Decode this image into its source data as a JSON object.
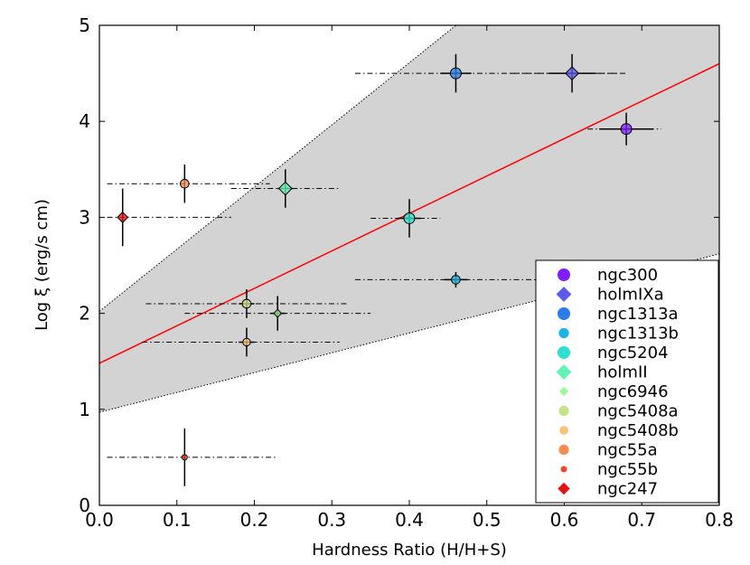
{
  "chart_data": {
    "type": "scatter",
    "title": "",
    "xlabel": "Hardness Ratio (H/H+S)",
    "ylabel": "Log ξ (erg/s cm)",
    "xlim": [
      0.0,
      0.8
    ],
    "ylim": [
      0,
      5
    ],
    "xticks": [
      "0.0",
      "0.1",
      "0.2",
      "0.3",
      "0.4",
      "0.5",
      "0.6",
      "0.7",
      "0.8"
    ],
    "yticks": [
      "0",
      "1",
      "2",
      "3",
      "4",
      "5"
    ],
    "grid": false,
    "legend_position": "lower-right",
    "fit_line": {
      "color": "#ff0000",
      "x": [
        0.0,
        0.8
      ],
      "y": [
        1.48,
        4.6
      ]
    },
    "shaded_band": {
      "color": "#d3d3d3",
      "upper": {
        "x": [
          0.0,
          0.8
        ],
        "y": [
          2.02,
          7.2
        ]
      },
      "lower": {
        "x": [
          0.0,
          0.8
        ],
        "y": [
          0.97,
          2.62
        ]
      }
    },
    "series": [
      {
        "name": "ngc300",
        "marker": "circle",
        "size": 1.0,
        "color": "#7f1fff",
        "points": [
          {
            "x": 0.68,
            "y": 3.92,
            "xerr": 0.035,
            "yerr": 0.17,
            "xerr_dash": [
              0.63,
              0.725
            ]
          }
        ]
      },
      {
        "name": "holmIXa",
        "marker": "diamond",
        "size": 1.0,
        "color": "#5a5af0",
        "points": [
          {
            "x": 0.61,
            "y": 4.5,
            "xerr": 0.03,
            "yerr": 0.2,
            "xerr_dash": [
              0.53,
              0.68
            ]
          }
        ]
      },
      {
        "name": "ngc1313a",
        "marker": "circle",
        "size": 1.0,
        "color": "#2b7de8",
        "points": [
          {
            "x": 0.46,
            "y": 4.5,
            "xerr": 0.02,
            "yerr": 0.2,
            "xerr_dash": [
              0.33,
              0.67
            ]
          }
        ]
      },
      {
        "name": "ngc1313b",
        "marker": "circle",
        "size": 0.8,
        "color": "#1eb4e3",
        "points": [
          {
            "x": 0.46,
            "y": 2.35,
            "xerr": 0.015,
            "yerr": 0.08,
            "xerr_dash": [
              0.33,
              0.62
            ]
          }
        ]
      },
      {
        "name": "ngc5204",
        "marker": "circle",
        "size": 1.0,
        "color": "#2ee0cf",
        "points": [
          {
            "x": 0.4,
            "y": 2.99,
            "xerr": 0.015,
            "yerr": 0.2,
            "xerr_dash": [
              0.35,
              0.44
            ]
          }
        ]
      },
      {
        "name": "holmII",
        "marker": "diamond",
        "size": 1.0,
        "color": "#60f5b4",
        "points": [
          {
            "x": 0.24,
            "y": 3.3,
            "xerr": 0.01,
            "yerr": 0.2,
            "xerr_dash": [
              0.17,
              0.31
            ]
          }
        ]
      },
      {
        "name": "ngc6946",
        "marker": "diamond",
        "size": 0.6,
        "color": "#9ef794",
        "points": [
          {
            "x": 0.23,
            "y": 2.0,
            "xerr": 0.01,
            "yerr": 0.18,
            "xerr_dash": [
              0.11,
              0.35
            ]
          }
        ]
      },
      {
        "name": "ngc5408a",
        "marker": "circle",
        "size": 0.8,
        "color": "#c8e385",
        "points": [
          {
            "x": 0.19,
            "y": 2.1,
            "xerr": 0.01,
            "yerr": 0.15,
            "xerr_dash": [
              0.06,
              0.32
            ]
          }
        ]
      },
      {
        "name": "ngc5408b",
        "marker": "circle",
        "size": 0.7,
        "color": "#f5c477",
        "points": [
          {
            "x": 0.19,
            "y": 1.7,
            "xerr": 0.01,
            "yerr": 0.15,
            "xerr_dash": [
              0.055,
              0.31
            ]
          }
        ]
      },
      {
        "name": "ngc55a",
        "marker": "circle",
        "size": 0.8,
        "color": "#f58b4f",
        "points": [
          {
            "x": 0.11,
            "y": 3.35,
            "xerr": 0.0,
            "yerr": 0.2,
            "xerr_dash": [
              0.01,
              0.22
            ]
          }
        ]
      },
      {
        "name": "ngc55b",
        "marker": "circle",
        "size": 0.5,
        "color": "#f0462b",
        "points": [
          {
            "x": 0.11,
            "y": 0.5,
            "xerr": 0.0,
            "yerr": 0.3,
            "xerr_dash": [
              0.01,
              0.23
            ]
          }
        ]
      },
      {
        "name": "ngc247",
        "marker": "diamond",
        "size": 0.8,
        "color": "#e81010",
        "points": [
          {
            "x": 0.03,
            "y": 3.0,
            "xerr": 0.0,
            "yerr": 0.3,
            "xerr_dash": [
              0.01,
              0.17
            ]
          }
        ]
      }
    ]
  }
}
